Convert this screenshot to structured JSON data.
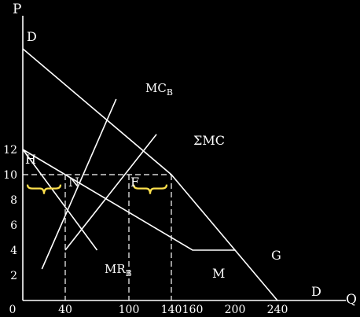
{
  "chart_data": {
    "type": "line",
    "title": "",
    "xlabel": "Q",
    "ylabel": "P",
    "xlim": [
      0,
      240
    ],
    "ylim": [
      0,
      20
    ],
    "grid": false,
    "x_ticks": [
      {
        "value": 0,
        "label": "0"
      },
      {
        "value": 40,
        "label": "40"
      },
      {
        "value": 100,
        "label": "100"
      },
      {
        "value": 140,
        "label": "140"
      },
      {
        "value": 160,
        "label": "160"
      },
      {
        "value": 200,
        "label": "200"
      },
      {
        "value": 240,
        "label": "240"
      }
    ],
    "y_ticks": [
      {
        "value": 2,
        "label": "2"
      },
      {
        "value": 4,
        "label": "4"
      },
      {
        "value": 6,
        "label": "6"
      },
      {
        "value": 8,
        "label": "8"
      },
      {
        "value": 10,
        "label": "10"
      },
      {
        "value": 12,
        "label": "12"
      }
    ],
    "series": [
      {
        "name": "D",
        "x": [
          0,
          140,
          240
        ],
        "y": [
          20,
          10,
          0
        ]
      },
      {
        "name": "MC_B",
        "x": [
          18,
          88
        ],
        "y": [
          2.5,
          16
        ]
      },
      {
        "name": "ΣMC",
        "x": [
          40,
          126
        ],
        "y": [
          4,
          13.2
        ]
      },
      {
        "name": "MR_B",
        "x": [
          0,
          70
        ],
        "y": [
          12,
          4
        ]
      },
      {
        "x": [
          0,
          160,
          200
        ],
        "y": [
          12,
          4,
          4
        ]
      }
    ],
    "series_labels": {
      "D": "D",
      "MC_B": {
        "base": "MC",
        "sub": "B"
      },
      "ΣMC": "ΣMC",
      "MR_B": {
        "base": "MR",
        "sub": "B"
      }
    },
    "point_labels": [
      "D",
      "H",
      "N",
      "F",
      "G",
      "M",
      "D"
    ],
    "reference_price": 10,
    "dashed_verticals": [
      40,
      100,
      140
    ],
    "brace_ranges": [
      [
        0,
        40
      ],
      [
        100,
        140
      ]
    ],
    "colors": {
      "background": "#000000",
      "lines": "#ffffff",
      "brace": "#ffe14d"
    }
  }
}
